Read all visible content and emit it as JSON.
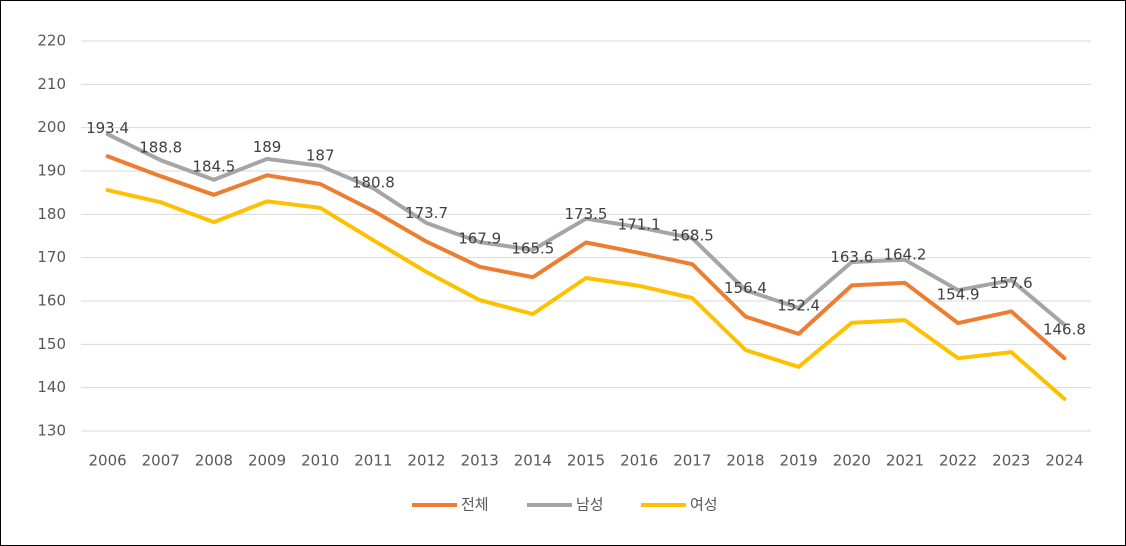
{
  "chart_data": {
    "type": "line",
    "categories": [
      "2006",
      "2007",
      "2008",
      "2009",
      "2010",
      "2011",
      "2012",
      "2013",
      "2014",
      "2015",
      "2016",
      "2017",
      "2018",
      "2019",
      "2020",
      "2021",
      "2022",
      "2023",
      "2024"
    ],
    "series": [
      {
        "name": "전체",
        "color": "#ed7d31",
        "values": [
          193.4,
          188.8,
          184.5,
          189,
          187,
          180.8,
          173.7,
          167.9,
          165.5,
          173.5,
          171.1,
          168.5,
          156.4,
          152.4,
          163.6,
          164.2,
          154.9,
          157.6,
          146.8
        ]
      },
      {
        "name": "남성",
        "color": "#a5a5a5",
        "values": [
          198.5,
          192.5,
          188,
          192.8,
          191.2,
          186,
          178,
          173.6,
          171.8,
          179,
          177,
          174.5,
          162.5,
          158.4,
          169,
          169.5,
          162.5,
          164.8,
          154.5
        ]
      },
      {
        "name": "여성",
        "color": "#ffc000",
        "values": [
          185.6,
          182.8,
          178.2,
          183,
          181.5,
          174,
          166.7,
          160.2,
          157,
          165.3,
          163.5,
          160.7,
          148.7,
          144.8,
          155,
          155.6,
          146.8,
          148.2,
          137.4
        ]
      }
    ],
    "ylim": [
      130,
      220
    ],
    "yticks": [
      130,
      140,
      150,
      160,
      170,
      180,
      190,
      200,
      210,
      220
    ],
    "grid": true,
    "legend": "bottom"
  }
}
